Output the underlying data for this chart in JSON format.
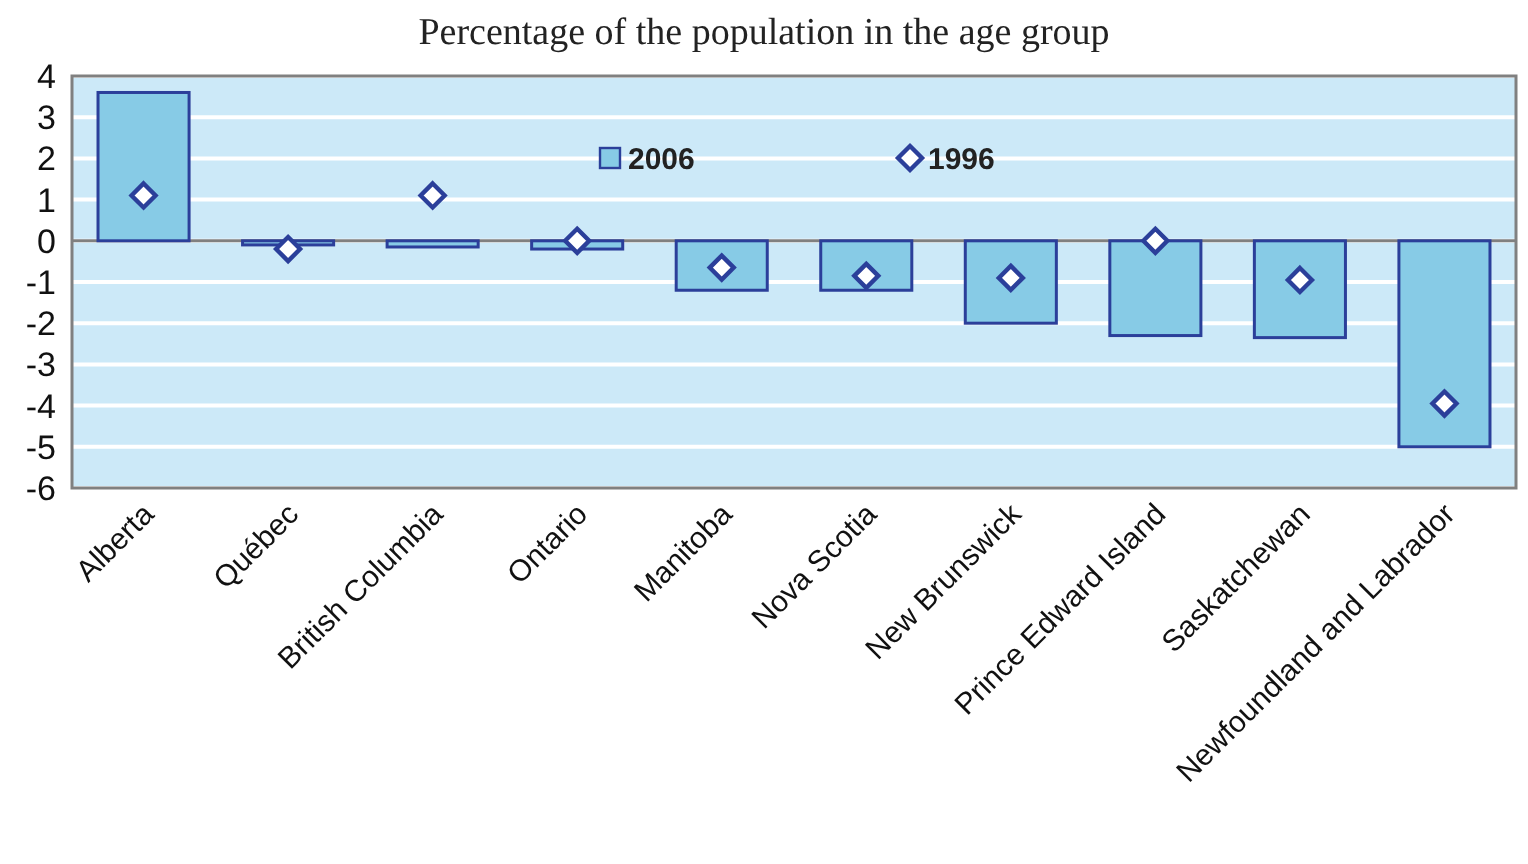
{
  "chart_data": {
    "type": "bar",
    "title": "Percentage of the population in the age group",
    "categories": [
      "Alberta",
      "Québec",
      "British Columbia",
      "Ontario",
      "Manitoba",
      "Nova Scotia",
      "New Brunswick",
      "Prince Edward Island",
      "Saskatchewan",
      "Newfoundland and Labrador"
    ],
    "series": [
      {
        "name": "2006",
        "color": "#87cbe6",
        "values": [
          3.6,
          -0.1,
          -0.15,
          -0.2,
          -1.2,
          -1.2,
          -2.0,
          -2.3,
          -2.35,
          -5.0
        ]
      },
      {
        "name": "1996",
        "type": "scatter",
        "color": "#2b3f9a",
        "values": [
          1.1,
          -0.2,
          1.1,
          0.0,
          -0.65,
          -0.85,
          -0.9,
          0.0,
          -0.95,
          -3.95
        ]
      }
    ],
    "ylim": [
      -6,
      4
    ],
    "yticks": [
      -6,
      -5,
      -4,
      -3,
      -2,
      -1,
      0,
      1,
      2,
      3,
      4
    ],
    "grid": "y",
    "legend": "top",
    "marker": "diamond"
  }
}
